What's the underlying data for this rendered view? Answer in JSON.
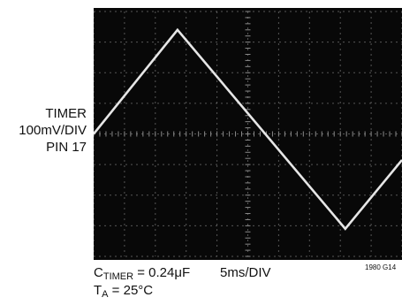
{
  "channel_label": {
    "line1": "TIMER",
    "line2": "100mV/DIV",
    "line3": "PIN 17"
  },
  "caption": {
    "c_timer_main": "C",
    "c_timer_sub": "TIMER",
    "c_timer_value": " = 0.24μF",
    "timebase": "5ms/DIV",
    "ta_main": "T",
    "ta_sub": "A",
    "ta_value": " = 25°C"
  },
  "figure_code": "1980 G14",
  "colors": {
    "screen": "#080808",
    "grid": "#8a8a8a",
    "trace": "#e6e6e6"
  },
  "chart_data": {
    "type": "line",
    "title": "",
    "xlabel": "",
    "ylabel": "",
    "x_unit": "ms",
    "y_unit": "mV",
    "x_per_div": 5,
    "y_per_div": 100,
    "divisions_x": 10,
    "divisions_y": 8,
    "xlim": [
      0,
      50
    ],
    "ylim": [
      -400,
      400
    ],
    "grid": true,
    "series": [
      {
        "x": [
          0,
          13.6,
          40.8,
          50
        ],
        "y": [
          0,
          340,
          -310,
          -85
        ]
      }
    ]
  }
}
